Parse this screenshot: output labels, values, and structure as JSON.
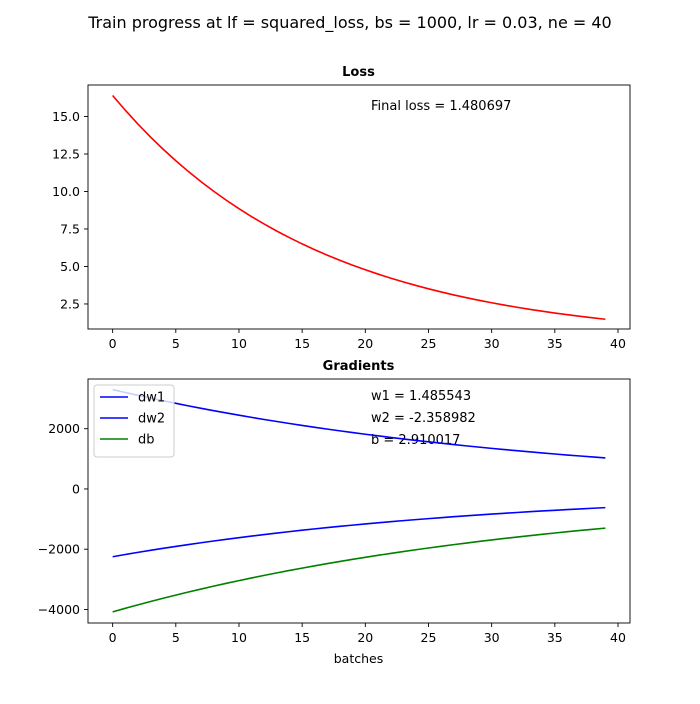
{
  "figure": {
    "suptitle": "Train progress at lf = squared_loss, bs = 1000, lr = 0.03, ne = 40"
  },
  "chart_data": [
    {
      "type": "line",
      "title": "Loss",
      "xlabel": "",
      "ylabel": "",
      "xlim": [
        -1.95,
        40.95
      ],
      "ylim": [
        0.83,
        17.1
      ],
      "xticks": [
        0,
        5,
        10,
        15,
        20,
        25,
        30,
        35,
        40
      ],
      "yticks": [
        2.5,
        5.0,
        7.5,
        10.0,
        12.5,
        15.0
      ],
      "ytick_labels": [
        "2.5",
        "5.0",
        "7.5",
        "10.0",
        "12.5",
        "15.0"
      ],
      "grid": false,
      "annotation": "Final loss = 1.480697",
      "series": [
        {
          "color": "#ff0000",
          "start": 16.4,
          "end": 1.480697,
          "n": 40
        }
      ]
    },
    {
      "type": "line",
      "title": "Gradients",
      "xlabel": "batches",
      "ylabel": "",
      "xlim": [
        -1.95,
        40.95
      ],
      "ylim": [
        -4450,
        3650
      ],
      "xticks": [
        0,
        5,
        10,
        15,
        20,
        25,
        30,
        35,
        40
      ],
      "yticks": [
        -4000,
        -2000,
        0,
        2000
      ],
      "ytick_labels": [
        "−4000",
        "−2000",
        "0",
        "2000"
      ],
      "grid": false,
      "legend_position": "top-left",
      "annotations": [
        "w1 = 1.485543",
        "w2 = -2.358982",
        "b = 2.910017"
      ],
      "series": [
        {
          "name": "dw1",
          "color": "#0000ff",
          "start": 3300,
          "end": 1030,
          "n": 40
        },
        {
          "name": "dw2",
          "color": "#0000ff",
          "start": -2250,
          "end": -620,
          "n": 40
        },
        {
          "name": "db",
          "color": "#008000",
          "start": -4080,
          "end": -1300,
          "n": 40
        }
      ]
    }
  ]
}
